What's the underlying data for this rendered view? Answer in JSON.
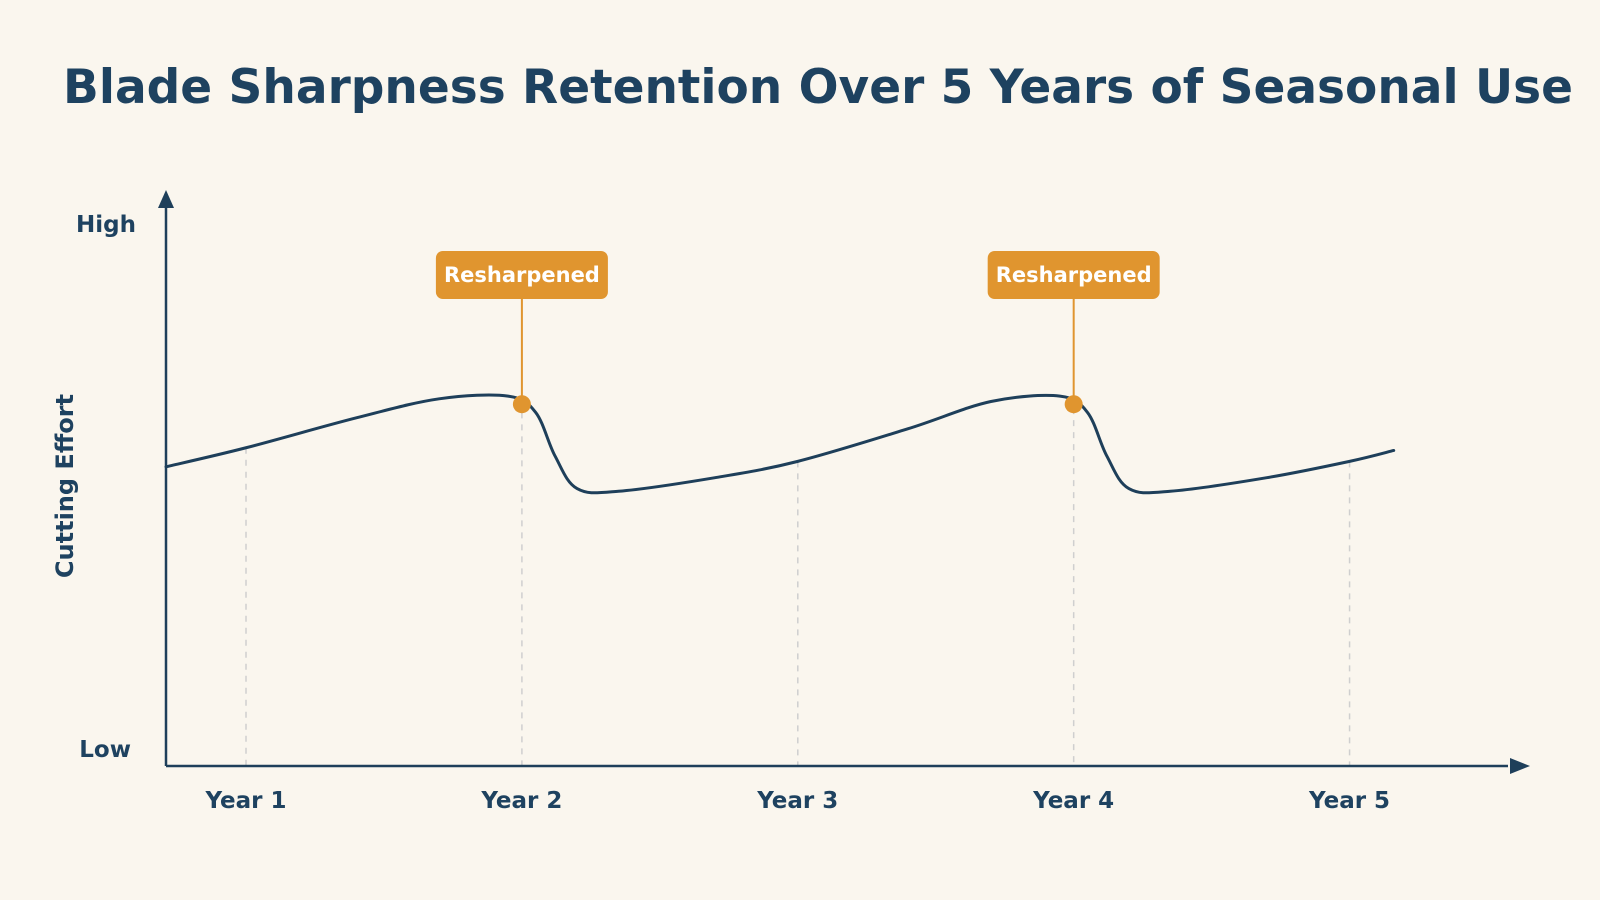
{
  "chart_data": {
    "type": "line",
    "title": "Blade Sharpness Retention Over 5 Years of Seasonal Use",
    "xlabel": "",
    "ylabel": "Cutting Effort",
    "y_tick_labels": {
      "high": "High",
      "low": "Low"
    },
    "ylim": [
      0,
      100
    ],
    "xlim": [
      0.71,
      5.48
    ],
    "categories": [
      "Year 1",
      "Year 2",
      "Year 3",
      "Year 4",
      "Year 5"
    ],
    "grid": "vertical-dashed",
    "series": [
      {
        "color": "#1E3F5A",
        "points": [
          [
            0.71,
            55
          ],
          [
            1.0,
            58.5
          ],
          [
            1.4,
            64
          ],
          [
            1.7,
            67.5
          ],
          [
            1.95,
            68
          ],
          [
            2.05,
            65
          ],
          [
            2.12,
            57
          ],
          [
            2.2,
            51
          ],
          [
            2.35,
            50.5
          ],
          [
            2.7,
            53
          ],
          [
            3.0,
            56
          ],
          [
            3.4,
            62
          ],
          [
            3.7,
            67
          ],
          [
            3.95,
            68
          ],
          [
            4.05,
            65
          ],
          [
            4.12,
            57
          ],
          [
            4.2,
            51
          ],
          [
            4.35,
            50.5
          ],
          [
            4.7,
            53
          ],
          [
            5.0,
            56
          ],
          [
            5.16,
            58
          ]
        ]
      }
    ],
    "annotations": [
      {
        "label": "Resharpened",
        "x": 2.0,
        "y": 66.5,
        "color": "#E0952F"
      },
      {
        "label": "Resharpened",
        "x": 4.0,
        "y": 66.5,
        "color": "#E0952F"
      }
    ],
    "colors": {
      "axis": "#1E3F5A",
      "grid": "#CFCFCF",
      "text": "#1E4260",
      "accent": "#E0952F"
    }
  }
}
